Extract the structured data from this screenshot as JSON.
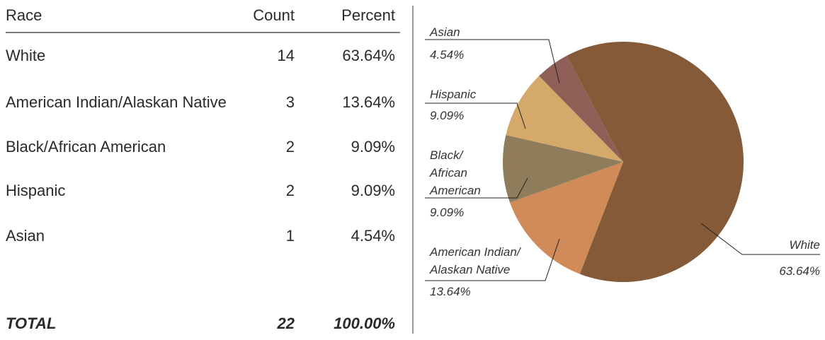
{
  "table": {
    "header": [
      "Race",
      "Count",
      "Percent"
    ],
    "rows": [
      [
        "White",
        14,
        "63.64%"
      ],
      [
        "American Indian/Alaskan Native",
        3,
        "13.64%"
      ],
      [
        "Black/African American",
        2,
        "9.09%"
      ],
      [
        "Hispanic",
        2,
        "9.09%"
      ],
      [
        "Asian",
        1,
        "4.54%"
      ]
    ],
    "total": [
      "TOTAL",
      22,
      "100.00%"
    ]
  },
  "chart_data": {
    "type": "pie",
    "categories": [
      "White",
      "American Indian/ Alaskan Native",
      "Black/ African American",
      "Hispanic",
      "Asian"
    ],
    "values": [
      63.64,
      13.64,
      9.09,
      9.09,
      4.54
    ],
    "value_labels": [
      "63.64%",
      "13.64%",
      "9.09%",
      "9.09%",
      "4.54%"
    ],
    "colors": [
      "#855a38",
      "#d08b58",
      "#8f7c5a",
      "#d4a96a",
      "#8d5f56"
    ]
  }
}
